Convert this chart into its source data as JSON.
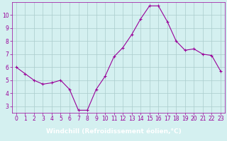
{
  "x": [
    0,
    1,
    2,
    3,
    4,
    5,
    6,
    7,
    8,
    9,
    10,
    11,
    12,
    13,
    14,
    15,
    16,
    17,
    18,
    19,
    20,
    21,
    22,
    23
  ],
  "y": [
    6.0,
    5.5,
    5.0,
    4.7,
    4.8,
    5.0,
    4.3,
    2.7,
    2.7,
    4.3,
    5.3,
    6.8,
    7.5,
    8.5,
    9.7,
    10.7,
    10.7,
    9.5,
    8.0,
    7.3,
    7.4,
    7.0,
    6.9,
    5.7
  ],
  "line_color": "#990099",
  "marker": "+",
  "marker_color": "#990099",
  "bg_color": "#d4f0f0",
  "grid_color": "#aacccc",
  "xlabel": "Windchill (Refroidissement éolien,°C)",
  "xlabel_bar_color": "#6666bb",
  "title": "",
  "ylim": [
    2.5,
    11.0
  ],
  "xlim": [
    -0.5,
    23.5
  ],
  "yticks": [
    3,
    4,
    5,
    6,
    7,
    8,
    9,
    10
  ],
  "xticks": [
    0,
    1,
    2,
    3,
    4,
    5,
    6,
    7,
    8,
    9,
    10,
    11,
    12,
    13,
    14,
    15,
    16,
    17,
    18,
    19,
    20,
    21,
    22,
    23
  ],
  "tick_color": "#990099",
  "tick_fontsize": 5.5,
  "xlabel_fontsize": 6.5,
  "linewidth": 0.8,
  "markersize": 3.5
}
